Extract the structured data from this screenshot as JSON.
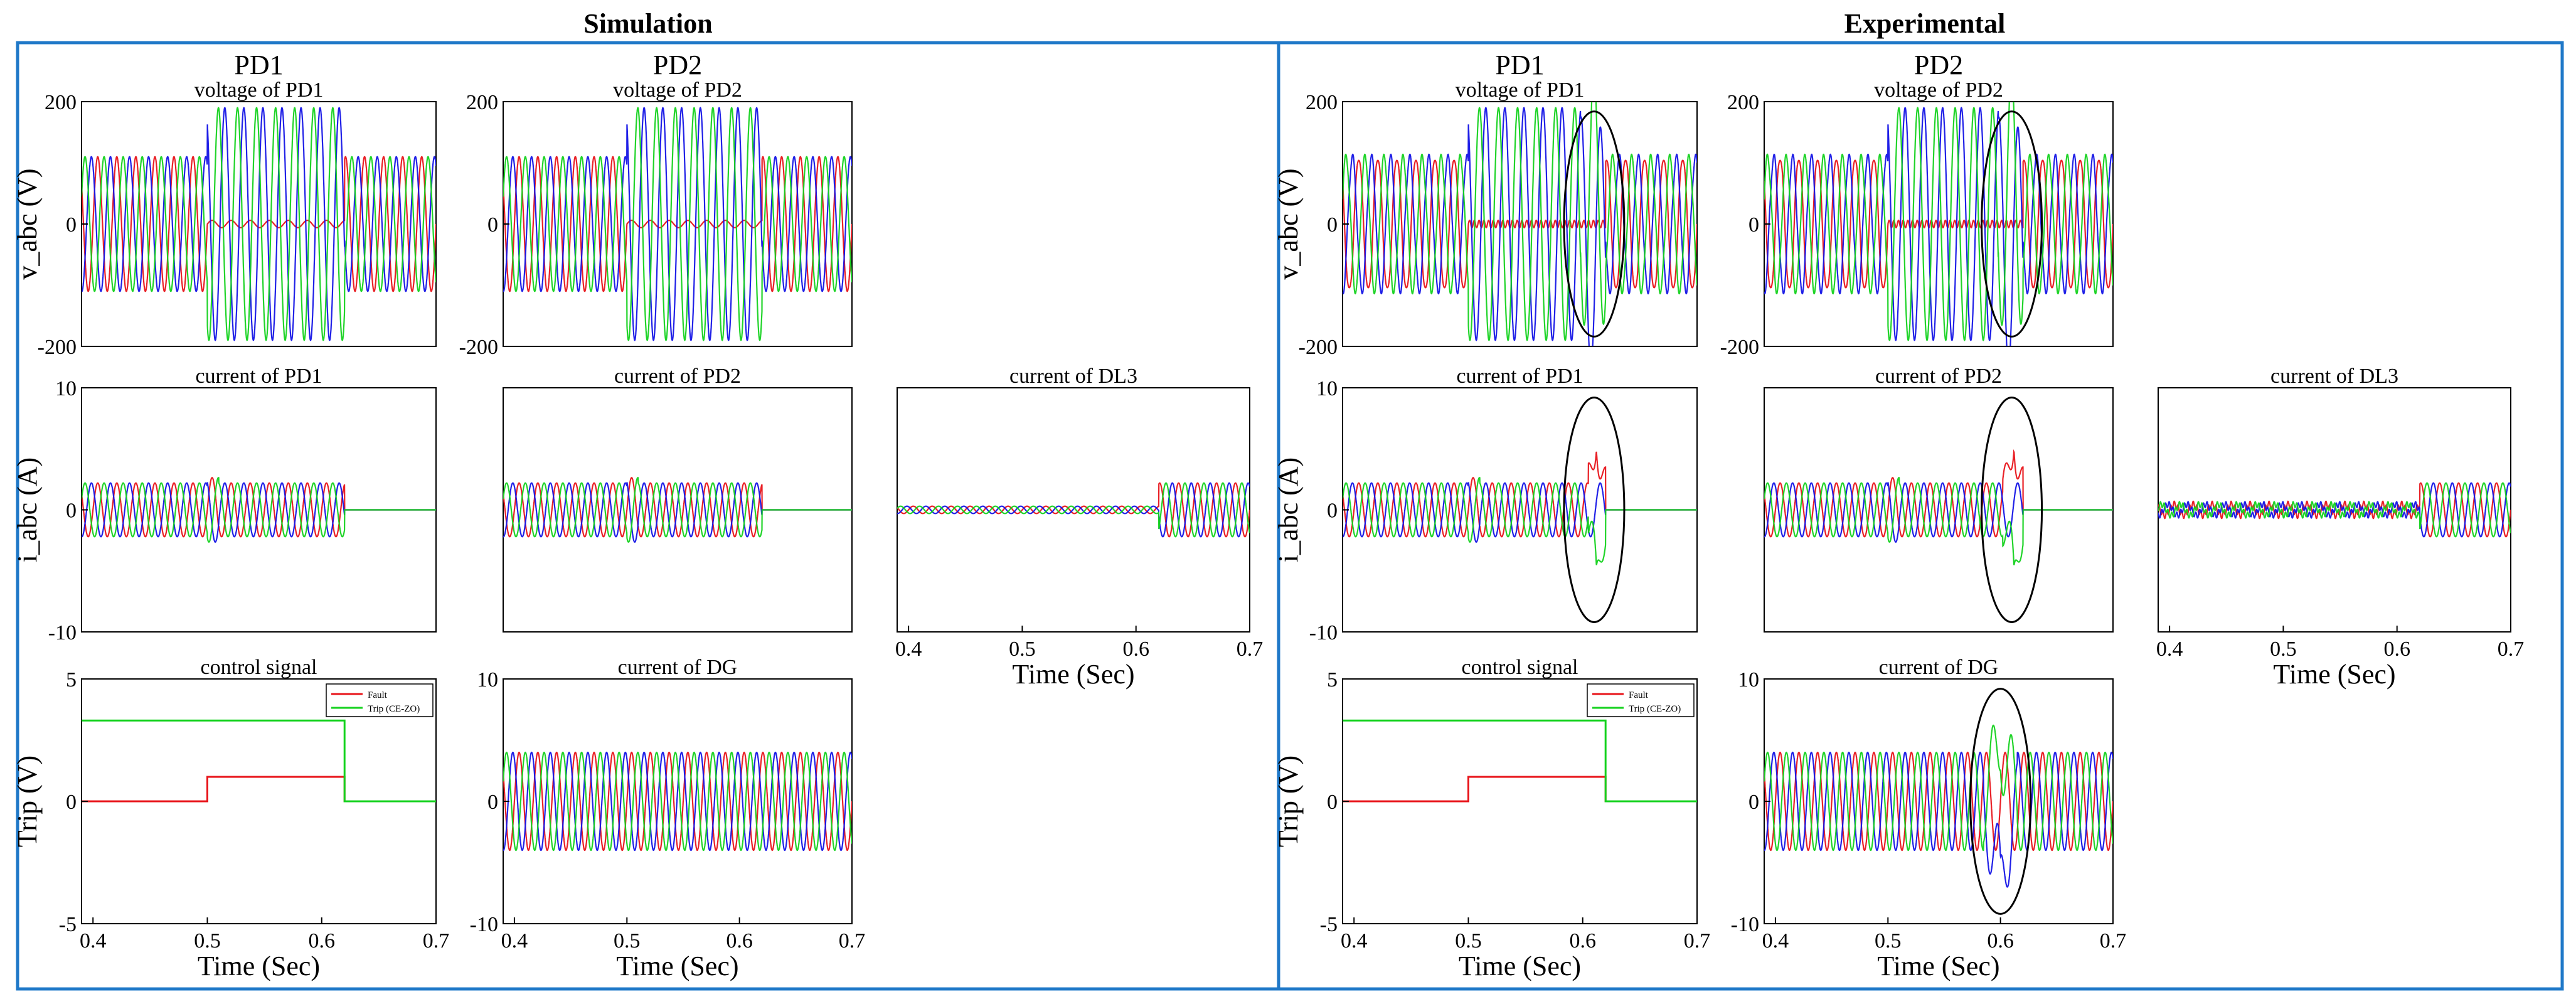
{
  "sections": [
    {
      "title": "Simulation",
      "col_titles": [
        "PD1",
        "PD2"
      ],
      "panels": [
        {
          "title": "voltage of PD1",
          "type": "voltage",
          "ylim": [
            -200,
            200
          ],
          "yticks": [
            "200",
            "0",
            "-200"
          ],
          "ylabel": "v_abc (V)",
          "xlabel": "",
          "xticks": []
        },
        {
          "title": "voltage of PD2",
          "type": "voltage",
          "ylim": [
            -200,
            200
          ],
          "yticks": [
            "200",
            "0",
            "-200"
          ],
          "ylabel": "",
          "xlabel": "",
          "xticks": []
        },
        {
          "title": "current of PD1",
          "type": "current",
          "ylim": [
            -10,
            10
          ],
          "yticks": [
            "10",
            "0",
            "-10"
          ],
          "ylabel": "i_abc (A)",
          "xlabel": "",
          "xticks": []
        },
        {
          "title": "current of PD2",
          "type": "current",
          "ylim": [
            -10,
            10
          ],
          "yticks": [],
          "ylabel": "",
          "xlabel": "",
          "xticks": []
        },
        {
          "title": "current of DL3",
          "type": "current",
          "ylim": [
            -10,
            10
          ],
          "yticks": [],
          "ylabel": "",
          "xlabel": "Time (Sec)",
          "xticks": [
            "0.4",
            "0.5",
            "0.6",
            "0.7"
          ]
        },
        {
          "title": "control signal",
          "type": "control",
          "ylim": [
            -5,
            5
          ],
          "yticks": [
            "5",
            "0",
            "-5"
          ],
          "ylabel": "Trip (V)",
          "xlabel": "Time (Sec)",
          "xticks": [
            "0.4",
            "0.5",
            "0.6",
            "0.7"
          ]
        },
        {
          "title": "current of DG",
          "type": "current",
          "ylim": [
            -10,
            10
          ],
          "yticks": [
            "10",
            "0",
            "-10"
          ],
          "ylabel": "",
          "xlabel": "Time (Sec)",
          "xticks": [
            "0.4",
            "0.5",
            "0.6",
            "0.7"
          ]
        }
      ]
    },
    {
      "title": "Experimental",
      "col_titles": [
        "PD1",
        "PD2"
      ],
      "panels": [
        {
          "title": "voltage of PD1",
          "type": "voltage",
          "ylim": [
            -200,
            200
          ],
          "yticks": [
            "200",
            "0",
            "-200"
          ],
          "ylabel": "v_abc (V)",
          "xlabel": "",
          "xticks": []
        },
        {
          "title": "voltage of PD2",
          "type": "voltage",
          "ylim": [
            -200,
            200
          ],
          "yticks": [
            "200",
            "0",
            "-200"
          ],
          "ylabel": "",
          "xlabel": "",
          "xticks": []
        },
        {
          "title": "current of PD1",
          "type": "current",
          "ylim": [
            -10,
            10
          ],
          "yticks": [
            "10",
            "0",
            "-10"
          ],
          "ylabel": "i_abc (A)",
          "xlabel": "",
          "xticks": []
        },
        {
          "title": "current of PD2",
          "type": "current",
          "ylim": [
            -10,
            10
          ],
          "yticks": [],
          "ylabel": "",
          "xlabel": "",
          "xticks": []
        },
        {
          "title": "current of DL3",
          "type": "current",
          "ylim": [
            -10,
            10
          ],
          "yticks": [],
          "ylabel": "",
          "xlabel": "Time (Sec)",
          "xticks": [
            "0.4",
            "0.5",
            "0.6",
            "0.7"
          ]
        },
        {
          "title": "control signal",
          "type": "control",
          "ylim": [
            -5,
            5
          ],
          "yticks": [
            "5",
            "0",
            "-5"
          ],
          "ylabel": "Trip (V)",
          "xlabel": "Time (Sec)",
          "xticks": [
            "0.4",
            "0.5",
            "0.6",
            "0.7"
          ]
        },
        {
          "title": "current of DG",
          "type": "current",
          "ylim": [
            -10,
            10
          ],
          "yticks": [
            "10",
            "0",
            "-10"
          ],
          "ylabel": "",
          "xlabel": "Time (Sec)",
          "xticks": [
            "0.4",
            "0.5",
            "0.6",
            "0.7"
          ]
        }
      ]
    }
  ],
  "legend": {
    "fault": "Fault",
    "trip": "Trip (CE-ZO)"
  },
  "colors": {
    "phase_a": "#e8141a",
    "phase_b": "#1414e6",
    "phase_c": "#14d21e",
    "frame": "#1f78c8",
    "axis": "#000000"
  },
  "chart_data": {
    "type": "line",
    "title": "Simulation vs Experimental",
    "xlabel": "Time (Sec)",
    "xlim": [
      0.39,
      0.7
    ],
    "x_ticks": [
      0.4,
      0.5,
      0.6,
      0.7
    ],
    "fault_start": 0.5,
    "trip_time": 0.62,
    "series": [
      {
        "name": "voltage of PD1",
        "unit": "V",
        "prefault_amp": 110,
        "fault_amp": 190,
        "faulted_phase_amp": 5
      },
      {
        "name": "voltage of PD2",
        "unit": "V",
        "prefault_amp": 110,
        "fault_amp": 190,
        "faulted_phase_amp": 5
      },
      {
        "name": "current of PD1",
        "unit": "A",
        "amp": 2.2,
        "after_trip": 0
      },
      {
        "name": "current of PD2",
        "unit": "A",
        "amp": 2.2,
        "after_trip": 0
      },
      {
        "name": "current of DL3",
        "unit": "A",
        "before_trip": 0.3,
        "amp_after_trip": 2.2
      },
      {
        "name": "current of DG",
        "unit": "A",
        "amp": 4
      },
      {
        "name": "Fault",
        "unit": "V",
        "x": [
          0.39,
          0.5,
          0.5,
          0.62,
          0.62,
          0.7
        ],
        "y": [
          0,
          0,
          1,
          1,
          0,
          0
        ]
      },
      {
        "name": "Trip (CE-ZO)",
        "unit": "V",
        "x": [
          0.39,
          0.62,
          0.62,
          0.7
        ],
        "y": [
          3.3,
          3.3,
          0,
          0
        ]
      }
    ]
  }
}
